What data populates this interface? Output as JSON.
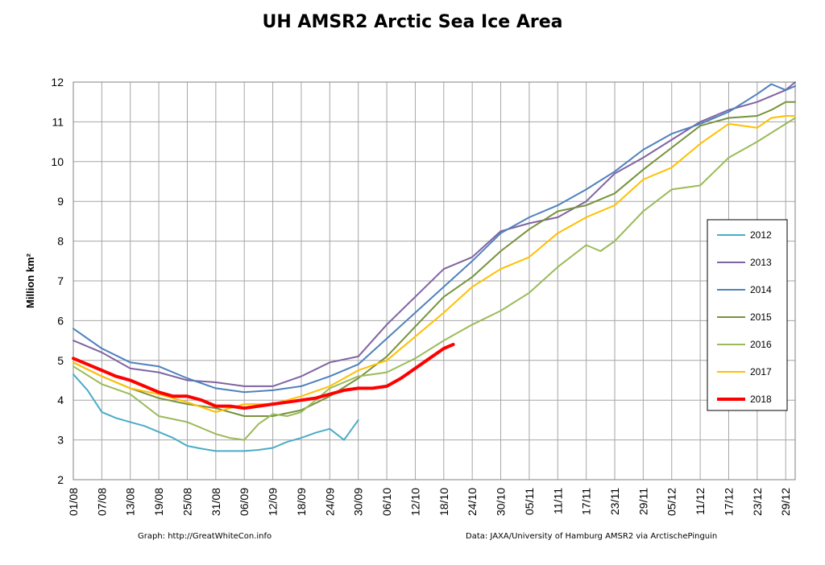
{
  "chart_data": {
    "type": "line",
    "title": "UH AMSR2 Arctic Sea Ice Area",
    "ylabel": "Million km²",
    "xlabel": "",
    "ylim": [
      2,
      12
    ],
    "yticks": [
      2,
      3,
      4,
      5,
      6,
      7,
      8,
      9,
      10,
      11,
      12
    ],
    "x_tick_labels": [
      "01/08",
      "07/08",
      "13/08",
      "19/08",
      "25/08",
      "31/08",
      "06/09",
      "12/09",
      "18/09",
      "24/09",
      "30/09",
      "06/10",
      "12/10",
      "18/10",
      "24/10",
      "30/10",
      "05/11",
      "11/11",
      "17/11",
      "23/11",
      "29/11",
      "05/12",
      "11/12",
      "17/12",
      "23/12",
      "29/12"
    ],
    "grid": true,
    "legend_position": "right",
    "credit_left": "Graph: http://GreatWhiteCon.info",
    "credit_right": "Data: JAXA/University of Hamburg AMSR2 via ArctischePinguin",
    "series": [
      {
        "name": "2012",
        "color": "#4BACC6",
        "width": 2,
        "x": [
          0,
          3,
          6,
          9,
          12,
          15,
          18,
          21,
          24,
          27,
          30,
          33,
          36,
          39,
          42,
          45,
          48,
          51,
          54,
          57,
          60
        ],
        "y": [
          4.65,
          4.25,
          3.7,
          3.55,
          3.45,
          3.35,
          3.2,
          3.05,
          2.85,
          2.78,
          2.72,
          2.72,
          2.72,
          2.75,
          2.8,
          2.95,
          3.05,
          3.18,
          3.28,
          3.0,
          3.5
        ]
      },
      {
        "name": "2013",
        "color": "#8064A2",
        "width": 2,
        "x": [
          0,
          6,
          12,
          18,
          24,
          30,
          36,
          42,
          48,
          54,
          60,
          66,
          72,
          78,
          84,
          90,
          96,
          102,
          108,
          114,
          120,
          126,
          132,
          138,
          144,
          150,
          152
        ],
        "y": [
          5.5,
          5.2,
          4.8,
          4.7,
          4.5,
          4.45,
          4.35,
          4.35,
          4.6,
          4.95,
          5.1,
          5.9,
          6.6,
          7.3,
          7.6,
          8.25,
          8.45,
          8.6,
          9.0,
          9.7,
          10.1,
          10.55,
          11.0,
          11.3,
          11.5,
          11.8,
          12.0
        ]
      },
      {
        "name": "2014",
        "color": "#4F81BD",
        "width": 2,
        "x": [
          0,
          6,
          12,
          18,
          24,
          30,
          36,
          42,
          48,
          54,
          60,
          66,
          72,
          78,
          84,
          90,
          96,
          102,
          108,
          114,
          120,
          126,
          132,
          138,
          144,
          147,
          150,
          152
        ],
        "y": [
          5.8,
          5.3,
          4.95,
          4.85,
          4.55,
          4.3,
          4.2,
          4.25,
          4.35,
          4.6,
          4.9,
          5.55,
          6.2,
          6.85,
          7.5,
          8.2,
          8.6,
          8.9,
          9.3,
          9.75,
          10.3,
          10.7,
          10.95,
          11.25,
          11.7,
          11.95,
          11.8,
          11.9
        ]
      },
      {
        "name": "2015",
        "color": "#77933C",
        "width": 2,
        "x": [
          0,
          6,
          12,
          18,
          24,
          30,
          36,
          42,
          48,
          54,
          60,
          66,
          72,
          78,
          84,
          90,
          96,
          102,
          108,
          114,
          120,
          126,
          132,
          138,
          144,
          147,
          150,
          152
        ],
        "y": [
          4.95,
          4.6,
          4.3,
          4.05,
          3.9,
          3.8,
          3.6,
          3.6,
          3.75,
          4.1,
          4.55,
          5.1,
          5.85,
          6.6,
          7.1,
          7.75,
          8.3,
          8.75,
          8.9,
          9.2,
          9.8,
          10.35,
          10.9,
          11.1,
          11.15,
          11.3,
          11.5,
          11.5
        ]
      },
      {
        "name": "2016",
        "color": "#9BBB59",
        "width": 2,
        "x": [
          0,
          6,
          12,
          18,
          24,
          30,
          33,
          36,
          39,
          42,
          45,
          48,
          54,
          60,
          66,
          72,
          78,
          84,
          90,
          96,
          102,
          108,
          111,
          114,
          120,
          126,
          132,
          138,
          144,
          150,
          152
        ],
        "y": [
          4.85,
          4.4,
          4.15,
          3.6,
          3.45,
          3.15,
          3.05,
          3.0,
          3.4,
          3.65,
          3.6,
          3.7,
          4.3,
          4.6,
          4.7,
          5.05,
          5.5,
          5.9,
          6.25,
          6.7,
          7.35,
          7.9,
          7.75,
          8.0,
          8.75,
          9.3,
          9.4,
          10.1,
          10.5,
          10.95,
          11.1
        ]
      },
      {
        "name": "2017",
        "color": "#FFC000",
        "width": 2,
        "x": [
          0,
          6,
          12,
          18,
          24,
          30,
          36,
          42,
          48,
          54,
          60,
          66,
          72,
          78,
          84,
          90,
          96,
          102,
          108,
          114,
          120,
          126,
          132,
          138,
          144,
          147,
          150,
          152
        ],
        "y": [
          4.95,
          4.6,
          4.3,
          4.15,
          3.95,
          3.7,
          3.9,
          3.9,
          4.1,
          4.35,
          4.75,
          5.0,
          5.6,
          6.2,
          6.85,
          7.3,
          7.6,
          8.2,
          8.6,
          8.9,
          9.55,
          9.85,
          10.45,
          10.95,
          10.85,
          11.1,
          11.15,
          11.15
        ]
      },
      {
        "name": "2018",
        "color": "#FF0000",
        "width": 4,
        "x": [
          0,
          3,
          6,
          9,
          12,
          15,
          18,
          21,
          24,
          27,
          30,
          33,
          36,
          39,
          42,
          45,
          48,
          51,
          54,
          57,
          60,
          63,
          66,
          69,
          72,
          75,
          78,
          80
        ],
        "y": [
          5.05,
          4.9,
          4.75,
          4.6,
          4.5,
          4.35,
          4.2,
          4.1,
          4.1,
          4.0,
          3.85,
          3.85,
          3.8,
          3.85,
          3.9,
          3.95,
          4.0,
          4.05,
          4.15,
          4.25,
          4.3,
          4.3,
          4.35,
          4.55,
          4.8,
          5.05,
          5.3,
          5.4
        ]
      }
    ]
  }
}
